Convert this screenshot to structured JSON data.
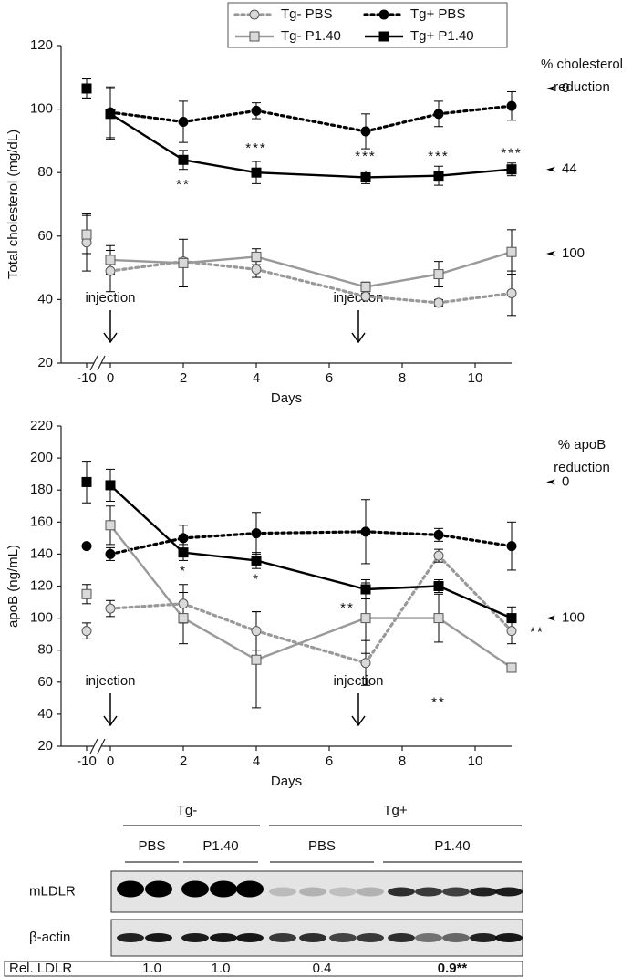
{
  "chart_data": [
    {
      "type": "line",
      "y_label": "Total cholesterol (mg/dL)",
      "x_label": "Days",
      "x": [
        -10,
        0,
        2,
        4,
        7,
        9,
        11
      ],
      "xlim": [
        -10.7,
        11
      ],
      "xticks": [
        -10,
        0,
        2,
        4,
        6,
        8,
        10
      ],
      "xbreak": [
        -10,
        0
      ],
      "ylim": [
        20,
        120
      ],
      "yticks": [
        20,
        40,
        60,
        80,
        100,
        120
      ],
      "legend": "top",
      "series": [
        {
          "name": "Tg- PBS",
          "color": "#999999",
          "marker": "circle",
          "marker_fill": "#d9d9d9",
          "dashed": true,
          "values": [
            58,
            49,
            52,
            49.5,
            41,
            39,
            42
          ],
          "errors": [
            9,
            6.5,
            1,
            2.5,
            1,
            1,
            7
          ]
        },
        {
          "name": "Tg+ PBS",
          "color": "#000000",
          "marker": "circle",
          "marker_fill": "#000000",
          "dashed": true,
          "values": [
            106.5,
            99,
            96,
            99.5,
            93,
            98.5,
            101
          ],
          "errors": [
            3,
            8,
            6.5,
            2.5,
            5.5,
            4,
            4.5
          ]
        },
        {
          "name": "Tg- P1.40",
          "color": "#999999",
          "marker": "square",
          "marker_fill": "#d9d9d9",
          "dashed": false,
          "values": [
            60.5,
            52.5,
            51.5,
            53.5,
            44,
            48,
            55
          ],
          "errors": [
            6,
            4.5,
            7.5,
            2.5,
            1.5,
            4,
            7
          ]
        },
        {
          "name": "Tg+ P1.40",
          "color": "#000000",
          "marker": "square",
          "marker_fill": "#000000",
          "dashed": false,
          "values": [
            106.5,
            98.5,
            84,
            80,
            78.5,
            79,
            81
          ],
          "errors": [
            3,
            8,
            3,
            3.5,
            2,
            3,
            2
          ]
        }
      ],
      "annotations": [
        {
          "text": "**",
          "x": 2,
          "y": 76
        },
        {
          "text": "***",
          "x": 4,
          "y": 87.5
        },
        {
          "text": "***",
          "x": 7,
          "y": 85
        },
        {
          "text": "***",
          "x": 9,
          "y": 85
        },
        {
          "text": "***",
          "x": 11,
          "y": 86
        }
      ],
      "injections": [
        {
          "text": "injection",
          "x": 0
        },
        {
          "text": "injection",
          "x": 6.8
        }
      ],
      "reduction_title": [
        "% cholesterol",
        "reduction"
      ],
      "reduction_markers": [
        {
          "value": 0,
          "y": 106.5
        },
        {
          "value": 44,
          "y": 81
        },
        {
          "value": 100,
          "y": 54.5
        }
      ]
    },
    {
      "type": "line",
      "y_label": "apoB (ng/mL)",
      "x_label": "Days",
      "x": [
        -10,
        0,
        2,
        4,
        7,
        9,
        11
      ],
      "xlim": [
        -10.7,
        11
      ],
      "xticks": [
        -10,
        0,
        2,
        4,
        6,
        8,
        10
      ],
      "xbreak": [
        -10,
        0
      ],
      "ylim": [
        20,
        220
      ],
      "yticks": [
        20,
        40,
        60,
        80,
        100,
        120,
        140,
        160,
        180,
        200,
        220
      ],
      "series": [
        {
          "color": "#999999",
          "marker": "circle",
          "marker_fill": "#d9d9d9",
          "dashed": true,
          "values": [
            92,
            106,
            109,
            92,
            72,
            139,
            92
          ],
          "errors": [
            5,
            5,
            12,
            12,
            14,
            4,
            8
          ]
        },
        {
          "color": "#000000",
          "marker": "circle",
          "marker_fill": "#000000",
          "dashed": true,
          "values": [
            145,
            140,
            150,
            153,
            154,
            152,
            145
          ],
          "errors": [
            0,
            4,
            8,
            13,
            20,
            4,
            15
          ]
        },
        {
          "color": "#999999",
          "marker": "square",
          "marker_fill": "#d9d9d9",
          "dashed": false,
          "values": [
            115,
            158,
            100,
            74,
            100,
            100,
            69
          ],
          "errors": [
            6,
            12,
            16,
            30,
            22,
            15,
            1
          ]
        },
        {
          "color": "#000000",
          "marker": "square",
          "marker_fill": "#000000",
          "dashed": false,
          "values": [
            185,
            183,
            141,
            136,
            118,
            120,
            100
          ],
          "errors": [
            13,
            10,
            5,
            5,
            6,
            4,
            7
          ]
        }
      ],
      "annotations": [
        {
          "text": "*",
          "x": 2,
          "y": 129
        },
        {
          "text": "*",
          "x": 4,
          "y": 124
        },
        {
          "text": "**",
          "x": 6.5,
          "y": 106
        },
        {
          "text": "**",
          "x": 9,
          "y": 47
        },
        {
          "text": "**",
          "x": 11.7,
          "y": 91
        }
      ],
      "injections": [
        {
          "text": "injection",
          "x": 0
        },
        {
          "text": "injection",
          "x": 6.8
        }
      ],
      "reduction_title": [
        "% apoB",
        "reduction"
      ],
      "reduction_markers": [
        {
          "value": 0,
          "y": 185
        },
        {
          "value": 100,
          "y": 100
        }
      ]
    }
  ],
  "blot": {
    "groups": [
      "Tg-",
      "Tg+"
    ],
    "subgroups": [
      "PBS",
      "P1.40",
      "PBS",
      "P1.40"
    ],
    "rows": [
      "mLDLR",
      "β-actin"
    ],
    "rel_label": "Rel. LDLR",
    "rel_values": [
      "1.0",
      "1.0",
      "0.4",
      "0.9**"
    ]
  }
}
